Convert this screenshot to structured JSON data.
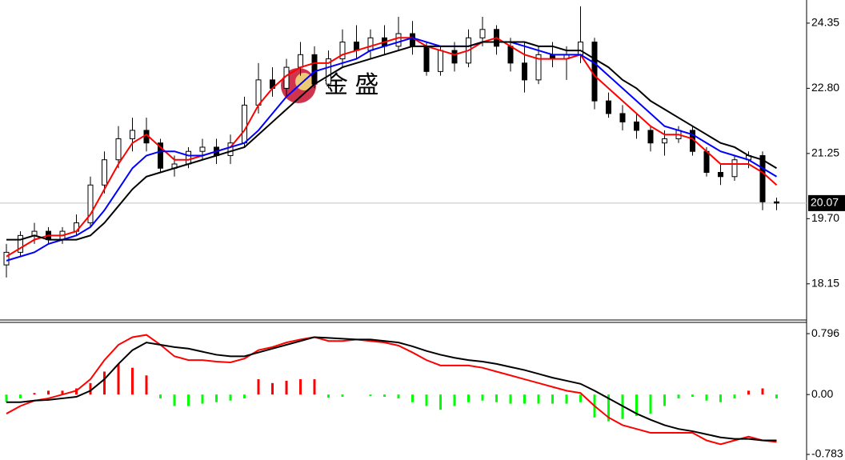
{
  "chart_data": [
    {
      "type": "candlestick",
      "watermark": "金 盛",
      "open": [
        18.6,
        18.9,
        19.3,
        19.4,
        19.2,
        19.4,
        19.6,
        20.5,
        21.1,
        21.6,
        21.8,
        21.5,
        20.9,
        21.0,
        21.3,
        21.4,
        21.2,
        21.5,
        22.4,
        23.0,
        22.8,
        23.3,
        23.6,
        22.9,
        23.5,
        23.9,
        23.7,
        24.0,
        23.8,
        24.1,
        23.8,
        23.2,
        23.7,
        23.4,
        24.0,
        24.2,
        23.8,
        23.4,
        23.0,
        23.6,
        23.5,
        23.6,
        23.9,
        22.5,
        22.2,
        22.0,
        21.8,
        21.5,
        21.6,
        21.8,
        21.3,
        20.8,
        20.7,
        21.1,
        21.2,
        20.1
      ],
      "high": [
        19.1,
        19.4,
        19.6,
        19.5,
        19.5,
        19.8,
        20.7,
        21.3,
        21.9,
        22.1,
        22.1,
        21.6,
        21.2,
        21.4,
        21.6,
        21.6,
        21.7,
        22.6,
        23.4,
        23.3,
        23.5,
        23.9,
        23.8,
        23.7,
        24.2,
        24.3,
        24.2,
        24.3,
        24.5,
        24.4,
        23.9,
        23.8,
        23.9,
        24.2,
        24.5,
        24.3,
        24.0,
        23.9,
        23.8,
        23.9,
        23.8,
        24.75,
        24.0,
        22.7,
        22.4,
        22.2,
        21.9,
        21.8,
        21.9,
        21.9,
        21.4,
        21.0,
        21.2,
        21.3,
        21.3,
        20.2
      ],
      "low": [
        18.3,
        18.8,
        19.1,
        19.1,
        19.1,
        19.3,
        19.5,
        20.3,
        20.9,
        21.3,
        21.3,
        20.8,
        20.7,
        20.9,
        21.1,
        21.0,
        21.0,
        21.4,
        22.2,
        22.6,
        22.6,
        23.1,
        22.8,
        22.8,
        23.3,
        23.5,
        23.5,
        23.6,
        23.7,
        23.6,
        23.1,
        23.1,
        23.2,
        23.3,
        23.8,
        23.6,
        23.2,
        22.7,
        22.9,
        23.3,
        23.0,
        23.4,
        22.3,
        22.1,
        21.8,
        21.6,
        21.3,
        21.2,
        21.5,
        21.2,
        20.7,
        20.5,
        20.6,
        20.9,
        19.9,
        19.9
      ],
      "close": [
        18.9,
        19.3,
        19.4,
        19.2,
        19.4,
        19.6,
        20.5,
        21.1,
        21.6,
        21.8,
        21.5,
        20.9,
        21.0,
        21.3,
        21.4,
        21.2,
        21.5,
        22.4,
        23.0,
        22.8,
        23.3,
        23.6,
        22.9,
        23.5,
        23.9,
        23.7,
        24.0,
        23.8,
        24.1,
        23.8,
        23.2,
        23.7,
        23.4,
        24.0,
        24.2,
        23.8,
        23.4,
        23.0,
        23.6,
        23.5,
        23.6,
        23.9,
        22.5,
        22.2,
        22.0,
        21.8,
        21.5,
        21.6,
        21.8,
        21.3,
        20.8,
        20.7,
        21.1,
        21.2,
        20.1,
        20.07
      ],
      "up_color": "#ffffff",
      "down_color": "#000000",
      "candle_outline": "#000000",
      "series": [
        {
          "color": "#ff0000",
          "values": [
            18.8,
            19.0,
            19.2,
            19.3,
            19.3,
            19.4,
            19.8,
            20.4,
            21.0,
            21.5,
            21.7,
            21.4,
            21.1,
            21.1,
            21.2,
            21.3,
            21.4,
            21.8,
            22.4,
            22.8,
            23.1,
            23.3,
            23.4,
            23.4,
            23.6,
            23.7,
            23.8,
            23.9,
            24.0,
            24.0,
            23.8,
            23.7,
            23.6,
            23.7,
            23.9,
            24.0,
            23.8,
            23.6,
            23.5,
            23.5,
            23.5,
            23.6,
            23.1,
            22.8,
            22.5,
            22.2,
            21.9,
            21.7,
            21.7,
            21.6,
            21.3,
            21.0,
            21.0,
            21.0,
            20.8,
            20.5
          ]
        },
        {
          "color": "#0000ff",
          "values": [
            18.7,
            18.8,
            18.9,
            19.1,
            19.2,
            19.3,
            19.5,
            19.9,
            20.4,
            20.9,
            21.2,
            21.3,
            21.3,
            21.2,
            21.2,
            21.3,
            21.4,
            21.5,
            21.8,
            22.2,
            22.6,
            22.9,
            23.2,
            23.3,
            23.4,
            23.5,
            23.7,
            23.8,
            23.9,
            24.0,
            23.9,
            23.8,
            23.8,
            23.8,
            23.9,
            23.9,
            23.9,
            23.8,
            23.7,
            23.6,
            23.6,
            23.6,
            23.4,
            23.1,
            22.8,
            22.5,
            22.2,
            21.9,
            21.8,
            21.7,
            21.5,
            21.3,
            21.2,
            21.1,
            20.9,
            20.7
          ]
        },
        {
          "color": "#000000",
          "values": [
            19.2,
            19.2,
            19.3,
            19.2,
            19.2,
            19.2,
            19.3,
            19.6,
            20.0,
            20.4,
            20.7,
            20.8,
            20.9,
            21.0,
            21.1,
            21.2,
            21.3,
            21.4,
            21.7,
            22.0,
            22.3,
            22.6,
            22.9,
            23.1,
            23.3,
            23.4,
            23.5,
            23.6,
            23.7,
            23.8,
            23.8,
            23.8,
            23.8,
            23.8,
            23.9,
            23.9,
            23.9,
            23.9,
            23.8,
            23.8,
            23.7,
            23.7,
            23.5,
            23.3,
            23.0,
            22.8,
            22.5,
            22.3,
            22.1,
            21.9,
            21.7,
            21.5,
            21.4,
            21.2,
            21.1,
            20.9
          ]
        }
      ],
      "ylim": [
        17.29,
        24.9
      ],
      "yticks": [
        24.35,
        {
          "value": 22.8,
          "label": "22.80"
        },
        21.25,
        {
          "value": 19.7,
          "label": "19.70"
        },
        18.15
      ],
      "last_price": 20.07,
      "last_price_color": "#c0c0c0"
    },
    {
      "type": "macd",
      "histogram": {
        "values": [
          -0.1,
          -0.05,
          0.02,
          0.05,
          0.05,
          0.08,
          0.15,
          0.3,
          0.4,
          0.35,
          0.25,
          -0.05,
          -0.15,
          -0.15,
          -0.12,
          -0.1,
          -0.08,
          -0.05,
          0.2,
          0.15,
          0.18,
          0.2,
          0.2,
          -0.04,
          -0.03,
          0,
          -0.02,
          -0.03,
          -0.05,
          -0.1,
          -0.15,
          -0.2,
          -0.15,
          -0.1,
          -0.08,
          -0.1,
          -0.12,
          -0.12,
          -0.12,
          -0.12,
          -0.12,
          -0.1,
          -0.3,
          -0.35,
          -0.32,
          -0.28,
          -0.25,
          -0.15,
          -0.05,
          -0.03,
          -0.08,
          -0.1,
          -0.05,
          0.05,
          0.08,
          -0.05
        ],
        "colors": [
          "#ff0000",
          "#00ff00"
        ]
      },
      "series": [
        {
          "color": "#ff0000",
          "values": [
            -0.25,
            -0.15,
            -0.08,
            -0.05,
            0,
            0.05,
            0.2,
            0.45,
            0.65,
            0.75,
            0.78,
            0.65,
            0.5,
            0.45,
            0.45,
            0.43,
            0.42,
            0.47,
            0.58,
            0.62,
            0.68,
            0.72,
            0.75,
            0.7,
            0.7,
            0.72,
            0.7,
            0.68,
            0.64,
            0.55,
            0.45,
            0.38,
            0.38,
            0.38,
            0.35,
            0.3,
            0.25,
            0.2,
            0.15,
            0.1,
            0.05,
            0.02,
            -0.15,
            -0.3,
            -0.4,
            -0.45,
            -0.5,
            -0.5,
            -0.5,
            -0.5,
            -0.6,
            -0.65,
            -0.6,
            -0.55,
            -0.6,
            -0.62
          ]
        },
        {
          "color": "#000000",
          "values": [
            -0.1,
            -0.1,
            -0.08,
            -0.07,
            -0.05,
            -0.03,
            0.05,
            0.2,
            0.4,
            0.58,
            0.68,
            0.65,
            0.62,
            0.6,
            0.56,
            0.52,
            0.5,
            0.5,
            0.55,
            0.6,
            0.65,
            0.7,
            0.75,
            0.74,
            0.73,
            0.72,
            0.72,
            0.7,
            0.68,
            0.63,
            0.57,
            0.52,
            0.48,
            0.45,
            0.43,
            0.4,
            0.36,
            0.32,
            0.27,
            0.22,
            0.18,
            0.14,
            0.05,
            -0.05,
            -0.15,
            -0.25,
            -0.33,
            -0.4,
            -0.45,
            -0.48,
            -0.52,
            -0.56,
            -0.58,
            -0.58,
            -0.6,
            -0.6
          ]
        }
      ],
      "ylim": [
        -0.856,
        0.943
      ],
      "yticks": [
        0.796,
        {
          "value": 0,
          "label": "0.00"
        },
        -0.783
      ]
    }
  ]
}
